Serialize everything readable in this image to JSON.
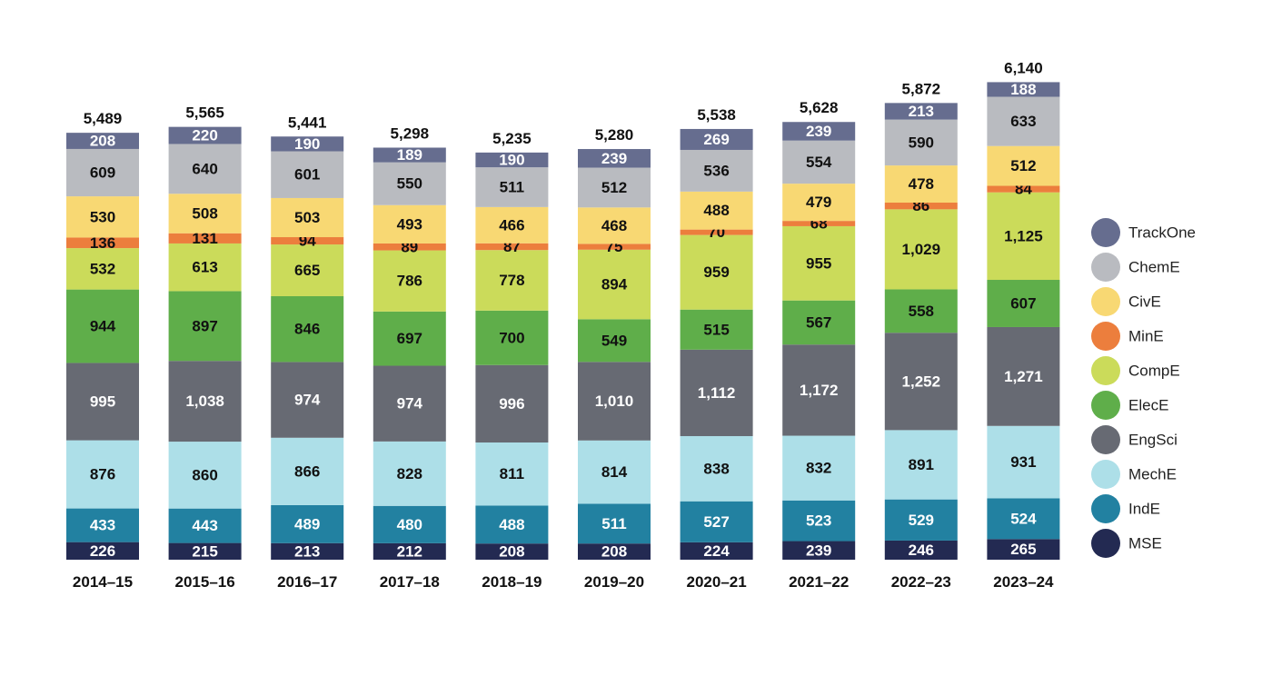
{
  "chart_data": {
    "type": "bar",
    "stacked": true,
    "title": "",
    "xlabel": "",
    "ylabel": "",
    "ylim": [
      0,
      6140
    ],
    "grid": false,
    "legend_position": "right",
    "categories": [
      "2014–15",
      "2015–16",
      "2016–17",
      "2017–18",
      "2018–19",
      "2019–20",
      "2020–21",
      "2021–22",
      "2022–23",
      "2023–24"
    ],
    "totals": [
      "5,489",
      "5,565",
      "5,441",
      "5,298",
      "5,235",
      "5,280",
      "5,538",
      "5,628",
      "5,872",
      "6,140"
    ],
    "series": [
      {
        "name": "MSE",
        "color": "#232a52",
        "text_color": "#ffffff",
        "values": [
          226,
          215,
          213,
          212,
          208,
          208,
          224,
          239,
          246,
          265
        ],
        "labels": [
          "226",
          "215",
          "213",
          "212",
          "208",
          "208",
          "224",
          "239",
          "246",
          "265"
        ]
      },
      {
        "name": "IndE",
        "color": "#2281a1",
        "text_color": "#ffffff",
        "values": [
          433,
          443,
          489,
          480,
          488,
          511,
          527,
          523,
          529,
          524
        ],
        "labels": [
          "433",
          "443",
          "489",
          "480",
          "488",
          "511",
          "527",
          "523",
          "529",
          "524"
        ]
      },
      {
        "name": "MechE",
        "color": "#addfe8",
        "text_color": "#111111",
        "values": [
          876,
          860,
          866,
          828,
          811,
          814,
          838,
          832,
          891,
          931
        ],
        "labels": [
          "876",
          "860",
          "866",
          "828",
          "811",
          "814",
          "838",
          "832",
          "891",
          "931"
        ]
      },
      {
        "name": "EngSci",
        "color": "#676a73",
        "text_color": "#ffffff",
        "values": [
          995,
          1038,
          974,
          974,
          996,
          1010,
          1112,
          1172,
          1252,
          1271
        ],
        "labels": [
          "995",
          "1,038",
          "974",
          "974",
          "996",
          "1,010",
          "1,112",
          "1,172",
          "1,252",
          "1,271"
        ]
      },
      {
        "name": "ElecE",
        "color": "#5fae4a",
        "text_color": "#111111",
        "values": [
          944,
          897,
          846,
          697,
          700,
          549,
          515,
          567,
          558,
          607
        ],
        "labels": [
          "944",
          "897",
          "846",
          "697",
          "700",
          "549",
          "515",
          "567",
          "558",
          "607"
        ]
      },
      {
        "name": "CompE",
        "color": "#cbdb5a",
        "text_color": "#111111",
        "values": [
          532,
          613,
          665,
          786,
          778,
          894,
          959,
          955,
          1029,
          1125
        ],
        "labels": [
          "532",
          "613",
          "665",
          "786",
          "778",
          "894",
          "959",
          "955",
          "1,029",
          "1,125"
        ]
      },
      {
        "name": "MinE",
        "color": "#ec7e3d",
        "text_color": "#111111",
        "values": [
          136,
          131,
          94,
          89,
          87,
          75,
          70,
          68,
          86,
          84
        ],
        "labels": [
          "136",
          "131",
          "94",
          "89",
          "87",
          "75",
          "70",
          "68",
          "86",
          "84"
        ]
      },
      {
        "name": "CivE",
        "color": "#f8d873",
        "text_color": "#111111",
        "values": [
          530,
          508,
          503,
          493,
          466,
          468,
          488,
          479,
          478,
          512
        ],
        "labels": [
          "530",
          "508",
          "503",
          "493",
          "466",
          "468",
          "488",
          "479",
          "478",
          "512"
        ]
      },
      {
        "name": "ChemE",
        "color": "#b9bbc0",
        "text_color": "#111111",
        "values": [
          609,
          640,
          601,
          550,
          511,
          512,
          536,
          554,
          590,
          633
        ],
        "labels": [
          "609",
          "640",
          "601",
          "550",
          "511",
          "512",
          "536",
          "554",
          "590",
          "633"
        ]
      },
      {
        "name": "TrackOne",
        "color": "#666d8f",
        "text_color": "#ffffff",
        "values": [
          208,
          220,
          190,
          189,
          190,
          239,
          269,
          239,
          213,
          188
        ],
        "labels": [
          "208",
          "220",
          "190",
          "189",
          "190",
          "239",
          "269",
          "239",
          "213",
          "188"
        ]
      }
    ]
  }
}
